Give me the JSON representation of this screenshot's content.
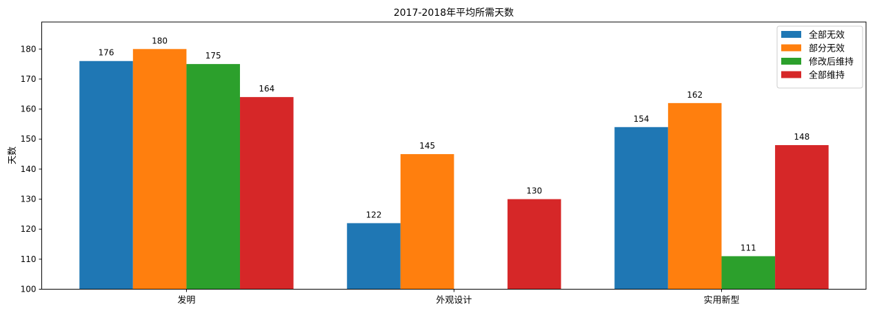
{
  "chart_data": {
    "type": "bar",
    "title": "2017-2018年平均所需天数",
    "xlabel": "",
    "ylabel": "天数",
    "categories": [
      "发明",
      "外观设计",
      "实用新型"
    ],
    "series": [
      {
        "name": "全部无效",
        "color": "#1f77b4",
        "values": [
          176,
          122,
          154
        ]
      },
      {
        "name": "部分无效",
        "color": "#ff7f0e",
        "values": [
          180,
          145,
          162
        ]
      },
      {
        "name": "修改后维持",
        "color": "#2ca02c",
        "values": [
          175,
          null,
          111
        ]
      },
      {
        "name": "全部维持",
        "color": "#d62728",
        "values": [
          164,
          130,
          148
        ]
      }
    ],
    "ylim": [
      100,
      189
    ],
    "yticks": [
      100,
      110,
      120,
      130,
      140,
      150,
      160,
      170,
      180
    ],
    "grid": false,
    "legend_position": "top-right",
    "data_labels": true
  }
}
